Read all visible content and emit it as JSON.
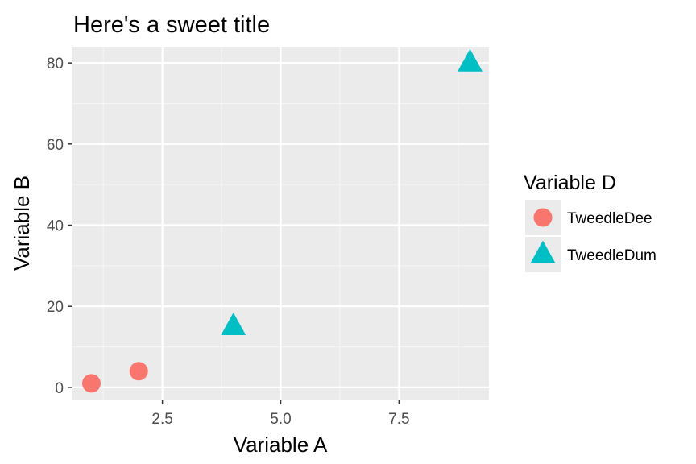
{
  "chart_data": {
    "type": "scatter",
    "title": "Here's a sweet title",
    "xlabel": "Variable A",
    "ylabel": "Variable B",
    "xlim": [
      0.6,
      9.4
    ],
    "ylim": [
      -3,
      84
    ],
    "x_ticks": [
      2.5,
      5.0,
      7.5
    ],
    "x_tick_labels": [
      "2.5",
      "5.0",
      "7.5"
    ],
    "y_ticks": [
      0,
      20,
      40,
      60,
      80
    ],
    "y_tick_labels": [
      "0",
      "20",
      "40",
      "60",
      "80"
    ],
    "grid": true,
    "legend": {
      "title": "Variable D",
      "placement": "right"
    },
    "series": [
      {
        "name": "TweedleDee",
        "marker": "circle",
        "color": "#F8766D",
        "points": [
          {
            "x": 1,
            "y": 1
          },
          {
            "x": 2,
            "y": 4
          }
        ]
      },
      {
        "name": "TweedleDum",
        "marker": "triangle",
        "color": "#00BFC4",
        "points": [
          {
            "x": 4,
            "y": 15
          },
          {
            "x": 9,
            "y": 80
          }
        ]
      }
    ]
  },
  "colors": {
    "panel_background": "#EBEBEB",
    "grid_major": "#FFFFFF",
    "grid_minor": "#F5F5F5"
  }
}
